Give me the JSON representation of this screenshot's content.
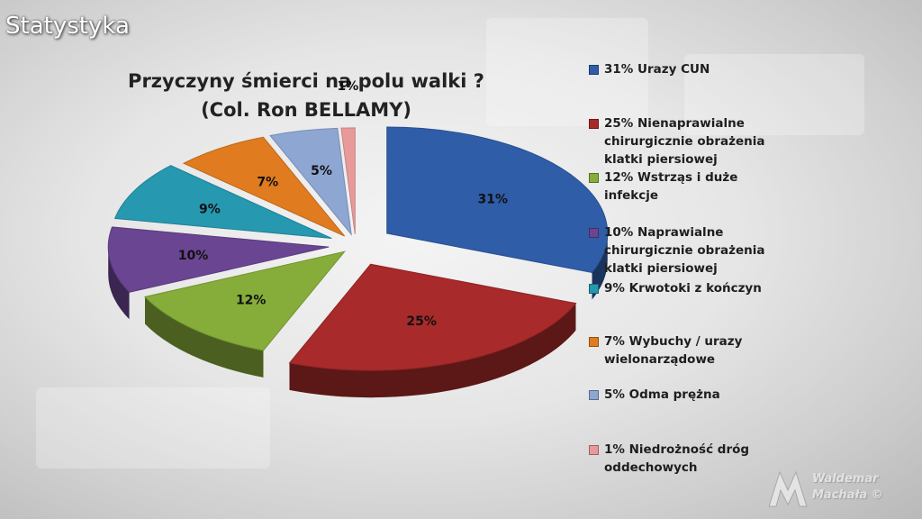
{
  "slide": {
    "heading": "Statystyka"
  },
  "chart_data": {
    "type": "pie",
    "title": [
      "Przyczyny śmierci na polu walki ?",
      "(Col. Ron BELLAMY)"
    ],
    "slices": [
      {
        "label": "31%",
        "value": 31,
        "legend": [
          "31% Urazy CUN"
        ],
        "color": "#2f5da8"
      },
      {
        "label": "25%",
        "value": 25,
        "legend": [
          "25% Nienaprawialne",
          "chirurgicznie obrażenia",
          "klatki piersiowej"
        ],
        "color": "#a82a2a"
      },
      {
        "label": "12%",
        "value": 12,
        "legend": [
          "12% Wstrząs i duże",
          "infekcje"
        ],
        "color": "#86ad3a"
      },
      {
        "label": "10%",
        "value": 10,
        "legend": [
          "10% Naprawialne",
          "chirurgicznie obrażenia",
          "klatki piersiowej"
        ],
        "color": "#6a4592"
      },
      {
        "label": "9%",
        "value": 9,
        "legend": [
          "9% Krwotoki z kończyn"
        ],
        "color": "#2698b0"
      },
      {
        "label": "7%",
        "value": 7,
        "legend": [
          "7% Wybuchy / urazy",
          "wielonarządowe"
        ],
        "color": "#e07b1f"
      },
      {
        "label": "5%",
        "value": 5,
        "legend": [
          "5% Odma prężna"
        ],
        "color": "#8ea6d2"
      },
      {
        "label": "1%",
        "value": 1,
        "legend": [
          "1% Niedrożność dróg",
          "oddechowych"
        ],
        "color": "#e89a9a"
      }
    ],
    "legend_position": "right"
  },
  "watermark": {
    "lines": [
      "Waldemar",
      "Machała ©"
    ]
  }
}
